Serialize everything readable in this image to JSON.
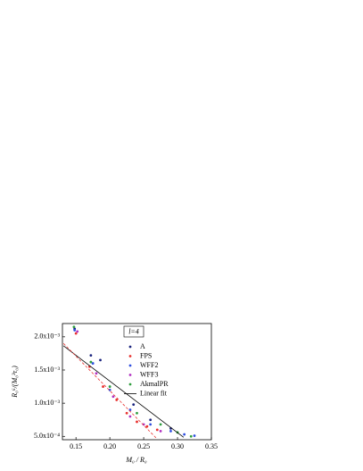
{
  "chart_data": {
    "type": "scatter",
    "xlabel": "M₀ / R₀",
    "ylabel": "R₀⁶/(M₀³τ₀)",
    "legend_title": "l=4",
    "xlim": [
      0.13,
      0.35
    ],
    "ylim": [
      0.00045,
      0.0022
    ],
    "xticks": [
      0.15,
      {
        "value": 0.2,
        "label": "0.20"
      },
      0.25,
      {
        "value": 0.3,
        "label": "0.30"
      },
      0.35
    ],
    "yticks": [
      {
        "value": 0.0005,
        "label": "5.0x10⁻⁴"
      },
      {
        "value": 0.001,
        "label": "1.0x10⁻³"
      },
      {
        "value": 0.0015,
        "label": "1.5x10⁻³"
      },
      {
        "value": 0.002,
        "label": "2.0x10⁻³"
      }
    ],
    "series": [
      {
        "name": "A",
        "color": "#1a237e",
        "style": "points",
        "x": [
          0.148,
          0.172,
          0.186,
          0.235,
          0.26,
          0.29
        ],
        "values": [
          0.00212,
          0.00172,
          0.00165,
          0.00098,
          0.00075,
          0.00062
        ]
      },
      {
        "name": "FPS",
        "color": "#e8312f",
        "style": "points",
        "x": [
          0.15,
          0.17,
          0.19,
          0.21,
          0.225,
          0.24,
          0.255,
          0.27
        ],
        "values": [
          0.00205,
          0.00155,
          0.00125,
          0.00105,
          0.00085,
          0.00072,
          0.00065,
          0.0006
        ]
      },
      {
        "name": "WFF2",
        "color": "#3050e0",
        "style": "points",
        "x": [
          0.148,
          0.175,
          0.2,
          0.23,
          0.26,
          0.29,
          0.31,
          0.325
        ],
        "values": [
          0.0021,
          0.0016,
          0.0012,
          0.0009,
          0.00068,
          0.00058,
          0.00053,
          0.00051
        ]
      },
      {
        "name": "WFF3",
        "color": "#b030c0",
        "style": "points",
        "x": [
          0.152,
          0.18,
          0.205,
          0.23,
          0.25,
          0.275
        ],
        "values": [
          0.00208,
          0.00145,
          0.0011,
          0.0008,
          0.00068,
          0.00058
        ]
      },
      {
        "name": "AkmalPR",
        "color": "#2e9e3e",
        "style": "points",
        "x": [
          0.147,
          0.172,
          0.2,
          0.24,
          0.275,
          0.3,
          0.32
        ],
        "values": [
          0.00215,
          0.00162,
          0.00125,
          0.00085,
          0.00068,
          0.00056,
          0.0005
        ]
      },
      {
        "name": "Linear fit",
        "color": "#000000",
        "style": "line",
        "x": [
          0.1316,
          0.309
        ],
        "values": [
          0.001865,
          0.000486
        ]
      },
      {
        "color": "#e8312f",
        "style": "dashed",
        "x": [
          0.1316,
          0.27
        ],
        "values": [
          0.0019,
          0.00046
        ]
      }
    ]
  }
}
